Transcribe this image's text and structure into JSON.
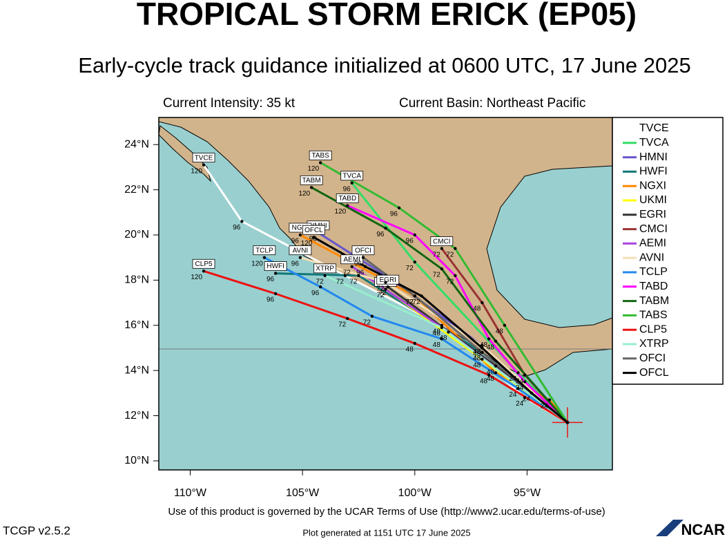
{
  "chart_data": {
    "type": "track_map",
    "title": "TROPICAL STORM ERICK (EP05)",
    "subtitle": "Early-cycle track guidance initialized at 0600 UTC, 17 June 2025",
    "intensity": "Current Intensity: 35 kt",
    "basin": "Current Basin: Northeast Pacific",
    "terms": "Use of this product is governed by the UCAR Terms of Use (http://www2.ucar.edu/terms-of-use)",
    "version": "TCGP v2.5.2",
    "generated": "Plot generated at 1151 UTC   17 June 2025",
    "logo": "NCAR",
    "xlim": [
      -111.4,
      -91.2
    ],
    "ylim": [
      9.6,
      25.2
    ],
    "xticks": [
      {
        "value": -110,
        "label": "110°W"
      },
      {
        "value": -105,
        "label": "105°W"
      },
      {
        "value": -100,
        "label": "100°W"
      },
      {
        "value": -95,
        "label": "95°W"
      }
    ],
    "yticks": [
      {
        "value": 10,
        "label": "10°N"
      },
      {
        "value": 12,
        "label": "12°N"
      },
      {
        "value": 14,
        "label": "14°N"
      },
      {
        "value": 16,
        "label": "16°N"
      },
      {
        "value": 18,
        "label": "18°N"
      },
      {
        "value": 20,
        "label": "20°N"
      },
      {
        "value": 22,
        "label": "22°N"
      },
      {
        "value": 24,
        "label": "24°N"
      }
    ],
    "series": [
      {
        "name": "TVCE",
        "color": "#ffffff",
        "lon": [
          -93.2,
          -95.1,
          -98.8,
          -103.1,
          -107.7,
          -109.4
        ],
        "lat": [
          11.7,
          12.8,
          16.0,
          18.2,
          20.6,
          23.1
        ],
        "hours": [
          null,
          24,
          48,
          72,
          96,
          120
        ]
      },
      {
        "name": "TVCA",
        "color": "#33dd66",
        "lon": [
          -93.2,
          -95.4,
          -100.0,
          -102.8
        ],
        "lat": [
          11.7,
          13.9,
          18.8,
          22.3
        ],
        "hours": [
          null,
          24,
          72,
          96
        ]
      },
      {
        "name": "HMNI",
        "color": "#6655cc",
        "lon": [
          -93.2,
          -97.0,
          -101.3,
          -104.3
        ],
        "lat": [
          11.7,
          15.1,
          18.2,
          20.1
        ],
        "hours": [
          null,
          48,
          72,
          96
        ]
      },
      {
        "name": "HWFI",
        "color": "#117777",
        "lon": [
          -93.2,
          -97.0,
          -102.5,
          -106.2
        ],
        "lat": [
          11.7,
          14.8,
          18.2,
          18.3
        ],
        "hours": [
          null,
          48,
          72,
          96
        ]
      },
      {
        "name": "NGXI",
        "color": "#ff8800",
        "lon": [
          -93.2,
          -94.0,
          -96.4,
          -100.0,
          -105.1
        ],
        "lat": [
          11.7,
          12.7,
          13.9,
          17.3,
          20.0
        ],
        "hours": [
          null,
          24,
          48,
          72,
          96
        ]
      },
      {
        "name": "UKMI",
        "color": "#ffff00",
        "lon": [
          -93.2,
          -97.0,
          -101.3
        ],
        "lat": [
          11.7,
          14.5,
          17.6
        ],
        "hours": [
          null,
          48,
          72
        ]
      },
      {
        "name": "EGRI",
        "color": "#333333",
        "lon": [
          -93.2,
          -96.4,
          -101.2
        ],
        "lat": [
          11.7,
          14.2,
          17.7
        ],
        "hours": [
          null,
          48,
          72
        ]
      },
      {
        "name": "CMCI",
        "color": "#993333",
        "lon": [
          -93.2,
          -95.1,
          -97.0,
          -98.8
        ],
        "lat": [
          11.7,
          13.8,
          17.0,
          19.4
        ],
        "hours": [
          null,
          24,
          48,
          72
        ]
      },
      {
        "name": "AEMI",
        "color": "#aa44dd",
        "lon": [
          -93.2,
          -98.5,
          -102.8
        ],
        "lat": [
          11.7,
          15.7,
          18.6
        ],
        "hours": [
          null,
          48,
          72
        ]
      },
      {
        "name": "AVNI",
        "color": "#f5deb3",
        "lon": [
          -93.2,
          -97.0,
          -101.3,
          -105.1
        ],
        "lat": [
          11.7,
          15.1,
          17.9,
          19.0
        ],
        "hours": [
          null,
          48,
          72,
          96
        ]
      },
      {
        "name": "TCLP",
        "color": "#2288ee",
        "lon": [
          -93.2,
          -95.4,
          -98.8,
          -101.9,
          -104.2,
          -106.7
        ],
        "lat": [
          11.7,
          13.2,
          15.4,
          16.4,
          17.7,
          19.0
        ],
        "hours": [
          null,
          24,
          48,
          72,
          96,
          120
        ]
      },
      {
        "name": "TABD",
        "color": "#ff00ff",
        "lon": [
          -93.2,
          -95.1,
          -96.7,
          -98.2,
          -100.0,
          -103.0
        ],
        "lat": [
          11.7,
          13.5,
          15.4,
          18.2,
          20.0,
          21.3
        ],
        "hours": [
          null,
          24,
          48,
          72,
          96,
          120
        ]
      },
      {
        "name": "TABM",
        "color": "#116611",
        "lon": [
          -93.2,
          -96.4,
          -98.8,
          -101.3,
          -104.6
        ],
        "lat": [
          11.7,
          15.3,
          18.5,
          20.3,
          22.1
        ],
        "hours": [
          null,
          48,
          72,
          96,
          120
        ]
      },
      {
        "name": "TABS",
        "color": "#33bb33",
        "lon": [
          -93.2,
          -96.0,
          -98.2,
          -100.7,
          -104.2
        ],
        "lat": [
          11.7,
          16.0,
          19.4,
          21.2,
          23.2
        ],
        "hours": [
          null,
          48,
          72,
          96,
          120
        ]
      },
      {
        "name": "CLP5",
        "color": "#ee1111",
        "lon": [
          -93.2,
          -96.7,
          -100.0,
          -103.0,
          -106.2,
          -109.4
        ],
        "lat": [
          11.7,
          13.8,
          15.2,
          16.3,
          17.4,
          18.4
        ],
        "hours": [
          null,
          48,
          48,
          72,
          96,
          120
        ]
      },
      {
        "name": "XTRP",
        "color": "#99eecc",
        "lon": [
          -93.2,
          -98.8,
          -104.0
        ],
        "lat": [
          11.7,
          15.9,
          18.2
        ],
        "hours": [
          null,
          48,
          72
        ]
      },
      {
        "name": "OFCI",
        "color": "#666666",
        "lon": [
          -93.2,
          -97.0,
          -100.0,
          -102.3
        ],
        "lat": [
          11.7,
          14.8,
          17.3,
          19.0
        ],
        "hours": [
          null,
          48,
          72,
          96
        ]
      },
      {
        "name": "OFCL",
        "color": "#000000",
        "lon": [
          -93.2,
          -94.8,
          -97.0,
          -99.7,
          -102.2,
          -104.5
        ],
        "lat": [
          11.7,
          13.0,
          15.0,
          17.3,
          18.6,
          19.9
        ],
        "hours": [
          null,
          24,
          48,
          72,
          96,
          120
        ]
      }
    ]
  }
}
